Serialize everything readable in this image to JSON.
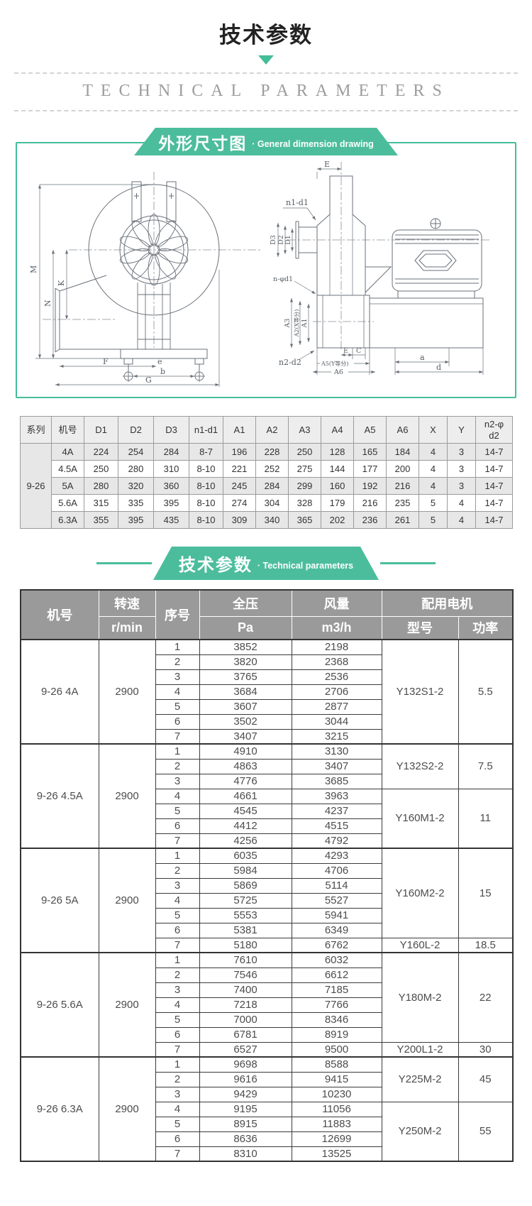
{
  "page": {
    "title": "技术参数",
    "subtitle": "TECHNICAL PARAMETERS"
  },
  "section_drawing": {
    "ribbon_cn": "外形尺寸图",
    "ribbon_en": "· General dimension drawing"
  },
  "section_params": {
    "ribbon_cn": "技术参数",
    "ribbon_en": "· Technical parameters"
  },
  "drawing": {
    "labels": {
      "m": "M",
      "n": "N",
      "k": "K",
      "f": "F",
      "e_small": "e",
      "b": "b",
      "g": "G",
      "e_top": "E",
      "n1d1": "n1-d1",
      "d3": "D3",
      "d2": "D2",
      "d1": "D1",
      "nphid": "n-φd1",
      "a3": "A3",
      "a2": "A2(X等分)",
      "a1": "A1",
      "n2d2": "n2-d2",
      "e_bot": "E",
      "c": "C",
      "a5": "A5(Y等分)",
      "a6": "A6",
      "a_small": "a",
      "d_small": "d"
    }
  },
  "dim_table": {
    "headers": [
      "系列",
      "机号",
      "D1",
      "D2",
      "D3",
      "n1-d1",
      "A1",
      "A2",
      "A3",
      "A4",
      "A5",
      "A6",
      "X",
      "Y",
      "n2-φ\nd2"
    ],
    "series": "9-26",
    "rows": [
      {
        "model": "4A",
        "values": [
          "224",
          "254",
          "284",
          "8-7",
          "196",
          "228",
          "250",
          "128",
          "165",
          "184",
          "4",
          "3",
          "14-7"
        ]
      },
      {
        "model": "4.5A",
        "values": [
          "250",
          "280",
          "310",
          "8-10",
          "221",
          "252",
          "275",
          "144",
          "177",
          "200",
          "4",
          "3",
          "14-7"
        ]
      },
      {
        "model": "5A",
        "values": [
          "280",
          "320",
          "360",
          "8-10",
          "245",
          "284",
          "299",
          "160",
          "192",
          "216",
          "4",
          "3",
          "14-7"
        ]
      },
      {
        "model": "5.6A",
        "values": [
          "315",
          "335",
          "395",
          "8-10",
          "274",
          "304",
          "328",
          "179",
          "216",
          "235",
          "5",
          "4",
          "14-7"
        ]
      },
      {
        "model": "6.3A",
        "values": [
          "355",
          "395",
          "435",
          "8-10",
          "309",
          "340",
          "365",
          "202",
          "236",
          "261",
          "5",
          "4",
          "14-7"
        ]
      }
    ]
  },
  "perf_table": {
    "headers": {
      "model": "机号",
      "speed": "转速",
      "speed_unit": "r/min",
      "no": "序号",
      "pressure": "全压",
      "pressure_unit": "Pa",
      "flow": "风量",
      "flow_unit": "m3/h",
      "motor": "配用电机",
      "motor_type": "型号",
      "motor_power": "功率"
    },
    "groups": [
      {
        "model": "9-26 4A",
        "speed": "2900",
        "rows": [
          [
            "1",
            "3852",
            "2198"
          ],
          [
            "2",
            "3820",
            "2368"
          ],
          [
            "3",
            "3765",
            "2536"
          ],
          [
            "4",
            "3684",
            "2706"
          ],
          [
            "5",
            "3607",
            "2877"
          ],
          [
            "6",
            "3502",
            "3044"
          ],
          [
            "7",
            "3407",
            "3215"
          ]
        ],
        "motors": [
          {
            "type": "Y132S1-2",
            "power": "5.5",
            "span": 7
          }
        ]
      },
      {
        "model": "9-26 4.5A",
        "speed": "2900",
        "rows": [
          [
            "1",
            "4910",
            "3130"
          ],
          [
            "2",
            "4863",
            "3407"
          ],
          [
            "3",
            "4776",
            "3685"
          ],
          [
            "4",
            "4661",
            "3963"
          ],
          [
            "5",
            "4545",
            "4237"
          ],
          [
            "6",
            "4412",
            "4515"
          ],
          [
            "7",
            "4256",
            "4792"
          ]
        ],
        "motors": [
          {
            "type": "Y132S2-2",
            "power": "7.5",
            "span": 3
          },
          {
            "type": "Y160M1-2",
            "power": "11",
            "span": 4
          }
        ]
      },
      {
        "model": "9-26 5A",
        "speed": "2900",
        "rows": [
          [
            "1",
            "6035",
            "4293"
          ],
          [
            "2",
            "5984",
            "4706"
          ],
          [
            "3",
            "5869",
            "5114"
          ],
          [
            "4",
            "5725",
            "5527"
          ],
          [
            "5",
            "5553",
            "5941"
          ],
          [
            "6",
            "5381",
            "6349"
          ],
          [
            "7",
            "5180",
            "6762"
          ]
        ],
        "motors": [
          {
            "type": "Y160M2-2",
            "power": "15",
            "span": 6
          },
          {
            "type": "Y160L-2",
            "power": "18.5",
            "span": 1
          }
        ]
      },
      {
        "model": "9-26 5.6A",
        "speed": "2900",
        "rows": [
          [
            "1",
            "7610",
            "6032"
          ],
          [
            "2",
            "7546",
            "6612"
          ],
          [
            "3",
            "7400",
            "7185"
          ],
          [
            "4",
            "7218",
            "7766"
          ],
          [
            "5",
            "7000",
            "8346"
          ],
          [
            "6",
            "6781",
            "8919"
          ],
          [
            "7",
            "6527",
            "9500"
          ]
        ],
        "motors": [
          {
            "type": "Y180M-2",
            "power": "22",
            "span": 6
          },
          {
            "type": "Y200L1-2",
            "power": "30",
            "span": 1
          }
        ]
      },
      {
        "model": "9-26 6.3A",
        "speed": "2900",
        "rows": [
          [
            "1",
            "9698",
            "8588"
          ],
          [
            "2",
            "9616",
            "9415"
          ],
          [
            "3",
            "9429",
            "10230"
          ],
          [
            "4",
            "9195",
            "11056"
          ],
          [
            "5",
            "8915",
            "11883"
          ],
          [
            "6",
            "8636",
            "12699"
          ],
          [
            "7",
            "8310",
            "13525"
          ]
        ],
        "motors": [
          {
            "type": "Y225M-2",
            "power": "45",
            "span": 3
          },
          {
            "type": "Y250M-2",
            "power": "55",
            "span": 4
          }
        ]
      }
    ]
  },
  "colors": {
    "accent": "#4cbd9c",
    "table_header_bg": "#9a9a9a"
  }
}
